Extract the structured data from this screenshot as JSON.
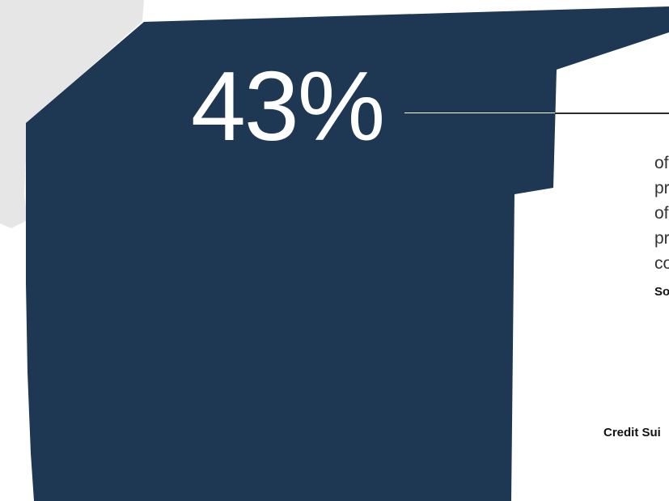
{
  "stat": {
    "value": "43%"
  },
  "description": {
    "lines": [
      "of",
      "pr",
      "of",
      "pr",
      "co"
    ]
  },
  "source": {
    "label": "So"
  },
  "credit": {
    "label": "Credit Sui"
  },
  "colors": {
    "region_fill": "#1e3752",
    "neighbor_fill": "#e6e6e6",
    "background": "#ffffff",
    "stat_text": "#ffffff",
    "body_text": "#333333"
  }
}
